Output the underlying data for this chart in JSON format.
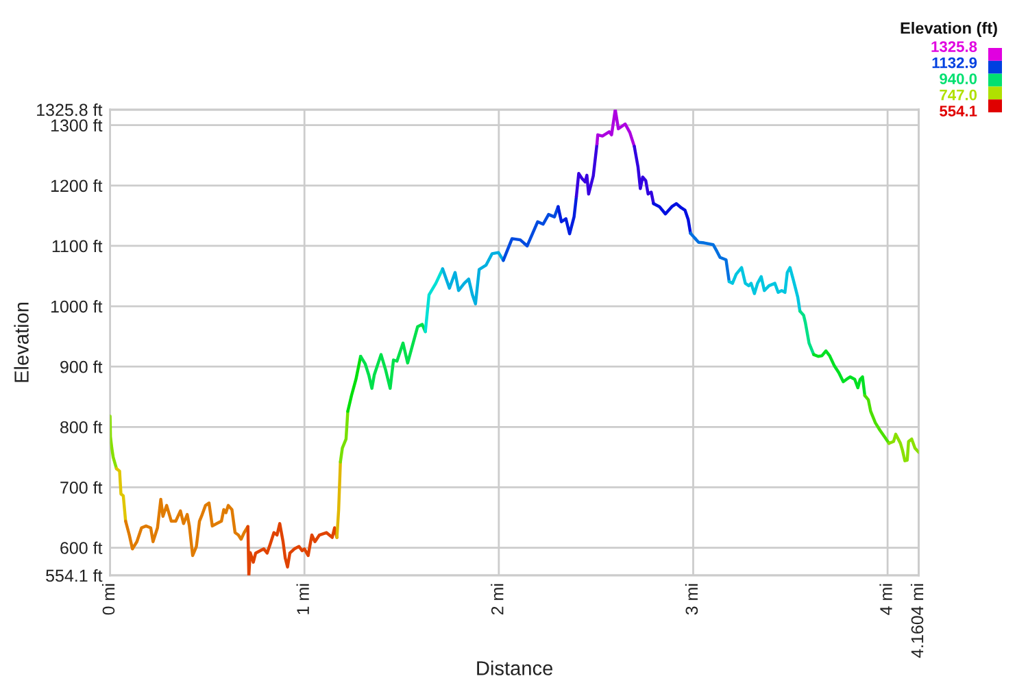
{
  "chart_data": {
    "type": "line",
    "xlabel": "Distance",
    "ylabel": "Elevation",
    "clabel": "Elevation (ft)",
    "clim": [
      554.1,
      1325.8
    ],
    "cticks": [
      554.1,
      {
        "value": 747,
        "label": "747.0"
      },
      {
        "value": 940,
        "label": "940.0"
      },
      1132.9,
      1325.8
    ],
    "colors": [
      "#e00000",
      "#b0e000",
      "#00e070",
      "#0040e0",
      "#e000e0"
    ],
    "series": [
      {
        "color": "#86e000",
        "x": [
          0.0,
          0.002,
          0.009,
          0.016,
          0.033
        ],
        "values": [
          818,
          784,
          765,
          750,
          731
        ]
      },
      {
        "color": "#e0c600",
        "x": [
          0.033,
          0.049,
          0.056,
          0.068,
          0.08
        ],
        "values": [
          731,
          727,
          689,
          686,
          644
        ]
      },
      {
        "color": "#e07b00",
        "x": [
          0.08,
          0.099,
          0.115,
          0.138,
          0.162,
          0.185,
          0.209,
          0.221,
          0.244,
          0.261,
          0.272,
          0.291,
          0.315,
          0.338,
          0.362,
          0.378,
          0.397,
          0.408,
          0.425,
          0.444,
          0.46,
          0.474,
          0.491,
          0.509,
          0.526,
          0.549,
          0.573,
          0.585,
          0.596,
          0.608,
          0.627,
          0.643,
          0.66,
          0.674,
          0.69,
          0.709
        ],
        "values": [
          644,
          621,
          598,
          610,
          633,
          636,
          633,
          610,
          633,
          680,
          652,
          670,
          644,
          644,
          661,
          640,
          655,
          636,
          587,
          602,
          644,
          655,
          670,
          674,
          636,
          640,
          644,
          663,
          658,
          670,
          663,
          625,
          621,
          614,
          625,
          635
        ]
      },
      {
        "color": "#e04300",
        "x": [
          0.709,
          0.714,
          0.721,
          0.737,
          0.749,
          0.772,
          0.791,
          0.808,
          0.824,
          0.843,
          0.859,
          0.873,
          0.89,
          0.901,
          0.913,
          0.925,
          0.948,
          0.972,
          0.988,
          1.0,
          1.019,
          1.038,
          1.054,
          1.077,
          1.113,
          1.143,
          1.155,
          1.167
        ],
        "values": [
          635,
          554.1,
          592,
          576,
          591,
          595,
          598,
          591,
          606,
          625,
          621,
          640,
          610,
          583,
          568,
          591,
          598,
          602,
          595,
          598,
          587,
          621,
          610,
          621,
          625,
          617,
          633,
          617
        ]
      },
      {
        "color": "#e0b700",
        "x": [
          1.167,
          1.176,
          1.185
        ],
        "values": [
          617,
          663,
          742
        ]
      },
      {
        "color": "#77e000",
        "x": [
          1.185,
          1.195,
          1.214,
          1.223
        ],
        "values": [
          742,
          765,
          780,
          826
        ]
      },
      {
        "color": "#00e00b",
        "x": [
          1.223,
          1.242,
          1.265,
          1.289
        ],
        "values": [
          826,
          852,
          879,
          917
        ]
      },
      {
        "color": "#00e04b",
        "x": [
          1.289,
          1.312,
          1.331,
          1.347,
          1.359,
          1.394,
          1.418,
          1.441,
          1.458,
          1.476,
          1.507,
          1.531,
          1.559,
          1.582,
          1.606,
          1.622
        ],
        "values": [
          917,
          905,
          886,
          864,
          886,
          920,
          894,
          864,
          911,
          909,
          939,
          906,
          939,
          966,
          970,
          958
        ]
      },
      {
        "color": "#00e0d5",
        "x": [
          1.622,
          1.641,
          1.676,
          1.711
        ],
        "values": [
          958,
          1019,
          1038,
          1062
        ]
      },
      {
        "color": "#00afe0",
        "x": [
          1.711,
          1.746,
          1.775,
          1.793,
          1.822,
          1.845,
          1.864,
          1.88,
          1.899,
          1.934,
          1.965,
          1.998,
          2.023
        ],
        "values": [
          1062,
          1030,
          1056,
          1026,
          1038,
          1045,
          1019,
          1004,
          1061,
          1068,
          1087,
          1089,
          1076
        ]
      },
      {
        "color": "#004be0",
        "x": [
          2.023,
          2.068,
          2.11,
          2.146,
          2.2,
          2.228,
          2.256,
          2.286,
          2.305
        ],
        "values": [
          1076,
          1112,
          1110,
          1100,
          1140,
          1136,
          1152,
          1148,
          1165
        ]
      },
      {
        "color": "#001ee0",
        "x": [
          2.305,
          2.322,
          2.345,
          2.364,
          2.387,
          2.399
        ],
        "values": [
          1165,
          1140,
          1145,
          1120,
          1148,
          1182
        ]
      },
      {
        "color": "#3800e0",
        "x": [
          2.399,
          2.411,
          2.427,
          2.444,
          2.453,
          2.462,
          2.486,
          2.505
        ],
        "values": [
          1182,
          1220,
          1212,
          1206,
          1217,
          1186,
          1216,
          1269
        ]
      },
      {
        "color": "#ac00e0",
        "x": [
          2.505,
          2.509,
          2.533,
          2.568,
          2.58,
          2.599,
          2.615,
          2.65,
          2.674,
          2.697
        ],
        "values": [
          1269,
          1284,
          1282,
          1289,
          1284,
          1325.8,
          1294,
          1302,
          1288,
          1265
        ]
      },
      {
        "color": "#3100e0",
        "x": [
          2.697,
          2.716,
          2.728,
          2.74,
          2.756,
          2.768,
          2.784,
          2.796
        ],
        "values": [
          1265,
          1231,
          1195,
          1214,
          1208,
          1186,
          1189,
          1170
        ]
      },
      {
        "color": "#000fe0",
        "x": [
          2.796,
          2.826,
          2.857,
          2.89,
          2.913,
          2.939,
          2.958,
          2.974,
          2.986
        ],
        "values": [
          1170,
          1165,
          1153,
          1165,
          1170,
          1163,
          1159,
          1144,
          1121
        ]
      },
      {
        "color": "#0070e0",
        "x": [
          2.986,
          3.005,
          3.028,
          3.056,
          3.103,
          3.122,
          3.138,
          3.169,
          3.185
        ],
        "values": [
          1121,
          1114,
          1106,
          1105,
          1102,
          1091,
          1081,
          1077,
          1041
        ]
      },
      {
        "color": "#00c6e0",
        "x": [
          3.185,
          3.202,
          3.221,
          3.249,
          3.268,
          3.286,
          3.298,
          3.315,
          3.331,
          3.35,
          3.366,
          3.39,
          3.42,
          3.437,
          3.455,
          3.472,
          3.484,
          3.498,
          3.514,
          3.538,
          3.549
        ],
        "values": [
          1041,
          1038,
          1053,
          1064,
          1038,
          1034,
          1038,
          1021,
          1038,
          1049,
          1026,
          1034,
          1038,
          1023,
          1026,
          1023,
          1056,
          1064,
          1045,
          1015,
          992
        ]
      },
      {
        "color": "#00e086",
        "x": [
          3.549,
          3.568,
          3.577,
          3.596,
          3.62
        ],
        "values": [
          992,
          985,
          973,
          939,
          920
        ]
      },
      {
        "color": "#00e022",
        "x": [
          3.62,
          3.643,
          3.662,
          3.683,
          3.702,
          3.725,
          3.749,
          3.772,
          3.789,
          3.808,
          3.831,
          3.847,
          3.859,
          3.871,
          3.883
        ],
        "values": [
          920,
          917,
          918,
          926,
          918,
          902,
          890,
          875,
          879,
          883,
          879,
          865,
          879,
          883,
          852
        ]
      },
      {
        "color": "#4be000",
        "x": [
          3.883,
          3.901,
          3.913,
          3.937,
          3.96,
          3.984,
          4.007
        ],
        "values": [
          852,
          845,
          826,
          807,
          795,
          784,
          773
        ]
      },
      {
        "color": "#8ae000",
        "x": [
          4.007,
          4.031,
          4.042,
          4.066,
          4.077,
          4.089,
          4.101,
          4.108,
          4.124,
          4.141,
          4.1604
        ],
        "values": [
          773,
          776,
          788,
          773,
          761,
          744,
          745,
          776,
          780,
          765,
          758
        ]
      }
    ],
    "xlim": [
      0,
      4.1604
    ],
    "xticks": [
      {
        "value": 0,
        "label": "0 mi"
      },
      {
        "value": 1,
        "label": "1 mi"
      },
      {
        "value": 2,
        "label": "2 mi"
      },
      {
        "value": 3,
        "label": "3 mi"
      },
      {
        "value": 4,
        "label": "4 mi"
      },
      {
        "value": 4.1604,
        "label": "4.1604 mi"
      }
    ],
    "ylim": [
      554.1,
      1325.8
    ],
    "yticks": [
      {
        "value": 554.1,
        "label": "554.1 ft"
      },
      {
        "value": 600,
        "label": "600 ft"
      },
      {
        "value": 700,
        "label": "700 ft"
      },
      {
        "value": 800,
        "label": "800 ft"
      },
      {
        "value": 900,
        "label": "900 ft"
      },
      {
        "value": 1000,
        "label": "1000 ft"
      },
      {
        "value": 1100,
        "label": "1100 ft"
      },
      {
        "value": 1200,
        "label": "1200 ft"
      },
      {
        "value": 1300,
        "label": "1300 ft"
      },
      {
        "value": 1325.8,
        "label": "1325.8 ft"
      }
    ],
    "grid": true,
    "marker": "none",
    "line_style": "solid"
  }
}
